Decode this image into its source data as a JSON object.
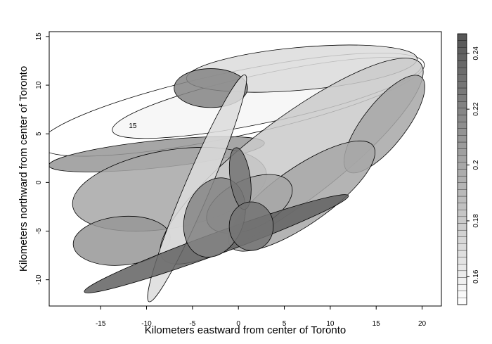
{
  "chart_data": {
    "type": "ellipse",
    "xlabel": "Kilometers eastward from center of Toronto",
    "ylabel": "Kilometers northward from center of Toronto",
    "xlim": [
      -20.6,
      22.1
    ],
    "ylim": [
      -12.7,
      15.5
    ],
    "xticks": [
      -15,
      -10,
      -5,
      0,
      5,
      10,
      15,
      20
    ],
    "yticks": [
      -10,
      -5,
      0,
      5,
      10,
      15
    ],
    "colorscale": {
      "low_color": "#ffffff",
      "high_color": "#555555",
      "zlim": [
        0.15,
        0.247
      ],
      "ticks": [
        0.16,
        0.18,
        0.2,
        0.22,
        0.24
      ]
    },
    "ellipses": {
      "cx": [
        -0.7,
        3.1,
        6.9,
        -3.0,
        -8.9,
        -7.5,
        -12.7,
        5.8,
        15.9,
        -4.5,
        6.9,
        1.2,
        -2.4,
        -2.6,
        0.2,
        1.4
      ],
      "cy": [
        8.0,
        8.7,
        11.7,
        9.7,
        2.9,
        -0.7,
        -6.0,
        2.2,
        6.0,
        -0.6,
        -1.4,
        -2.2,
        -6.3,
        -3.6,
        0.4,
        -4.5
      ],
      "rx": [
        21.4,
        17.2,
        12.6,
        4.0,
        11.8,
        10.7,
        5.3,
        17.6,
        6.5,
        13.4,
        9.5,
        5.0,
        15.3,
        3.2,
        1.1,
        2.4
      ],
      "ry": [
        3.3,
        2.5,
        2.2,
        2.0,
        1.4,
        4.0,
        2.5,
        4.3,
        2.2,
        1.3,
        2.9,
        2.5,
        1.1,
        4.2,
        3.2,
        2.5
      ],
      "angle": [
        12,
        12,
        5,
        0,
        6,
        10,
        5,
        37,
        52,
        67,
        35,
        25,
        20,
        -20,
        8,
        0
      ],
      "value": [
        0.15,
        0.155,
        0.17,
        0.22,
        0.21,
        0.2,
        0.21,
        0.18,
        0.2,
        0.17,
        0.2,
        0.2,
        0.24,
        0.22,
        0.23,
        0.23
      ]
    },
    "annotations": [
      {
        "text": "15",
        "x": -11.5,
        "y": 5.8
      }
    ]
  }
}
